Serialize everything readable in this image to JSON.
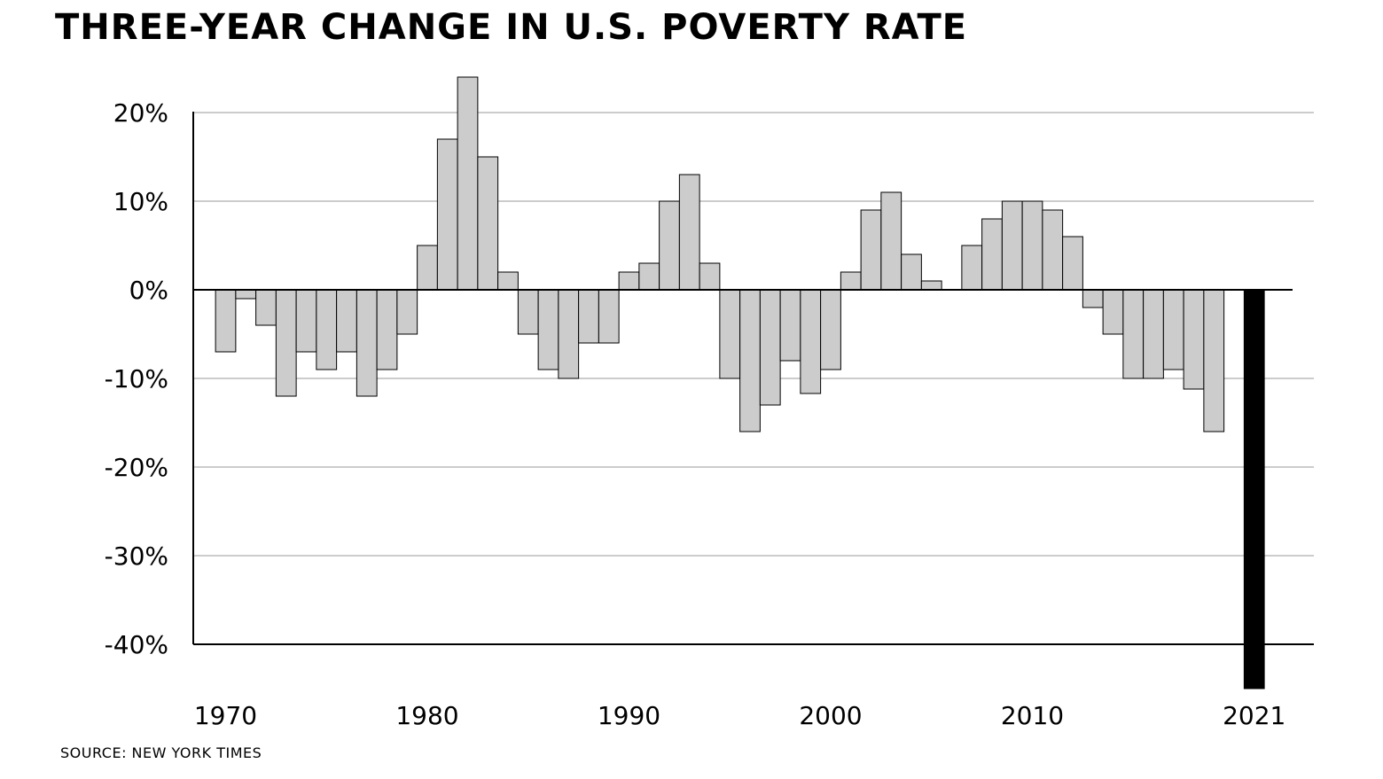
{
  "title": "THREE-YEAR CHANGE IN U.S. POVERTY RATE",
  "source": "SOURCE: NEW YORK TIMES",
  "chart_data": {
    "type": "bar",
    "title": "THREE-YEAR CHANGE IN U.S. POVERTY RATE",
    "xlabel": "",
    "ylabel": "",
    "ylim": [
      -40,
      20
    ],
    "grid": true,
    "y_ticks": [
      20,
      10,
      0,
      -10,
      -20,
      -30,
      -40
    ],
    "y_tick_labels": [
      "20%",
      "10%",
      "0%",
      "-10%",
      "-20%",
      "-30%",
      "-40%"
    ],
    "x_tick_labels": [
      "1970",
      "1980",
      "1990",
      "2000",
      "2010",
      "2021"
    ],
    "x_ticks": [
      1970,
      1980,
      1990,
      2000,
      2010,
      2021
    ],
    "highlight_color": "#000000",
    "bar_color": "#cccccc",
    "categories": [
      1970,
      1971,
      1972,
      1973,
      1974,
      1975,
      1976,
      1977,
      1978,
      1979,
      1980,
      1981,
      1982,
      1983,
      1984,
      1985,
      1986,
      1987,
      1988,
      1989,
      1990,
      1991,
      1992,
      1993,
      1994,
      1995,
      1996,
      1997,
      1998,
      1999,
      2000,
      2001,
      2002,
      2003,
      2004,
      2005,
      2006,
      2007,
      2008,
      2009,
      2010,
      2011,
      2012,
      2013,
      2014,
      2015,
      2016,
      2017,
      2018,
      2019,
      2020,
      2021
    ],
    "values": [
      -7,
      -1,
      -4,
      -12,
      -7,
      -9,
      -7,
      -12,
      -9,
      -5,
      5,
      17,
      24,
      15,
      2,
      -5,
      -9,
      -10,
      -6,
      -6,
      2,
      3,
      10,
      13,
      3,
      -10,
      -16,
      -13,
      -8,
      -11.7,
      -9,
      2,
      9,
      11,
      4,
      1,
      0,
      5,
      8,
      10,
      10,
      9,
      6,
      -2,
      -5,
      -10,
      -10,
      -9,
      -11.2,
      -16,
      null,
      -45
    ],
    "highlight": [
      2021
    ]
  }
}
